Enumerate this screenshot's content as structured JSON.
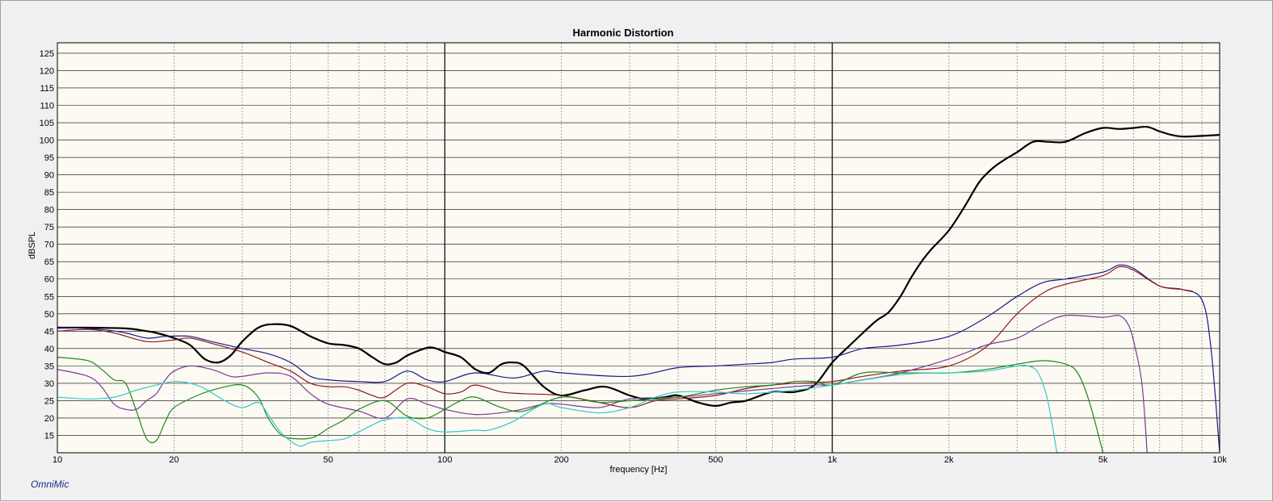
{
  "app": {
    "brand": "OmniMic"
  },
  "chart_data": {
    "type": "line",
    "title": "Harmonic Distortion",
    "xlabel": "frequency [Hz]",
    "ylabel": "dBSPL",
    "xscale": "log",
    "xlim": [
      10,
      10000
    ],
    "ylim": [
      10,
      128
    ],
    "grid": true,
    "x_tick_labels": [
      {
        "value": 10,
        "label": "10"
      },
      {
        "value": 20,
        "label": "20"
      },
      {
        "value": 50,
        "label": "50"
      },
      {
        "value": 100,
        "label": "100"
      },
      {
        "value": 200,
        "label": "200"
      },
      {
        "value": 500,
        "label": "500"
      },
      {
        "value": 1000,
        "label": "1k"
      },
      {
        "value": 2000,
        "label": "2k"
      },
      {
        "value": 5000,
        "label": "5k"
      },
      {
        "value": 10000,
        "label": "10k"
      }
    ],
    "y_ticks": [
      15,
      20,
      25,
      30,
      35,
      40,
      45,
      50,
      55,
      60,
      65,
      70,
      75,
      80,
      85,
      90,
      95,
      100,
      105,
      110,
      115,
      120,
      125
    ],
    "series": [
      {
        "color": "#000000",
        "width": 2.2,
        "points": [
          [
            10,
            46
          ],
          [
            12,
            46
          ],
          [
            15,
            45.8
          ],
          [
            17,
            45
          ],
          [
            18,
            44.5
          ],
          [
            20,
            43
          ],
          [
            22,
            41
          ],
          [
            24,
            37
          ],
          [
            26,
            36
          ],
          [
            28,
            38
          ],
          [
            30,
            42
          ],
          [
            33,
            46
          ],
          [
            36,
            47
          ],
          [
            40,
            46.5
          ],
          [
            45,
            43.5
          ],
          [
            50,
            41.5
          ],
          [
            55,
            41
          ],
          [
            60,
            40
          ],
          [
            65,
            37.5
          ],
          [
            70,
            35.5
          ],
          [
            75,
            36
          ],
          [
            80,
            38
          ],
          [
            90,
            40.2
          ],
          [
            95,
            40
          ],
          [
            100,
            39
          ],
          [
            110,
            37.5
          ],
          [
            120,
            34
          ],
          [
            130,
            33
          ],
          [
            140,
            35.5
          ],
          [
            150,
            36
          ],
          [
            160,
            35
          ],
          [
            180,
            29
          ],
          [
            200,
            26.5
          ],
          [
            230,
            28
          ],
          [
            260,
            29
          ],
          [
            300,
            26.5
          ],
          [
            330,
            25.5
          ],
          [
            370,
            26
          ],
          [
            400,
            26.5
          ],
          [
            450,
            24.5
          ],
          [
            500,
            23.5
          ],
          [
            550,
            24.5
          ],
          [
            600,
            25
          ],
          [
            700,
            27.5
          ],
          [
            800,
            27.5
          ],
          [
            900,
            29.5
          ],
          [
            1000,
            36
          ],
          [
            1100,
            40.5
          ],
          [
            1200,
            44.5
          ],
          [
            1300,
            48
          ],
          [
            1400,
            50.5
          ],
          [
            1500,
            55
          ],
          [
            1600,
            60.5
          ],
          [
            1700,
            65
          ],
          [
            1800,
            68.5
          ],
          [
            2000,
            74
          ],
          [
            2200,
            81
          ],
          [
            2400,
            88
          ],
          [
            2600,
            92
          ],
          [
            2800,
            94.5
          ],
          [
            3000,
            96.5
          ],
          [
            3300,
            99.5
          ],
          [
            3600,
            99.5
          ],
          [
            4000,
            99.5
          ],
          [
            4500,
            102
          ],
          [
            5000,
            103.5
          ],
          [
            5500,
            103.2
          ],
          [
            6000,
            103.5
          ],
          [
            6500,
            103.8
          ],
          [
            7000,
            102.5
          ],
          [
            7500,
            101.5
          ],
          [
            8000,
            101
          ],
          [
            9000,
            101.2
          ],
          [
            10000,
            101.5
          ]
        ]
      },
      {
        "color": "#1a1a8a",
        "width": 1.2,
        "points": [
          [
            10,
            46.2
          ],
          [
            13,
            45.5
          ],
          [
            15,
            44.5
          ],
          [
            17,
            43
          ],
          [
            19,
            43.5
          ],
          [
            22,
            43.5
          ],
          [
            25,
            42
          ],
          [
            30,
            40
          ],
          [
            35,
            38.5
          ],
          [
            40,
            36
          ],
          [
            45,
            32
          ],
          [
            50,
            31
          ],
          [
            60,
            30.5
          ],
          [
            70,
            30.5
          ],
          [
            80,
            33.5
          ],
          [
            90,
            31
          ],
          [
            100,
            30.5
          ],
          [
            120,
            33
          ],
          [
            150,
            31.5
          ],
          [
            180,
            33.5
          ],
          [
            200,
            33
          ],
          [
            300,
            32
          ],
          [
            400,
            34.5
          ],
          [
            500,
            35
          ],
          [
            600,
            35.5
          ],
          [
            700,
            36
          ],
          [
            800,
            37
          ],
          [
            1000,
            37.5
          ],
          [
            1200,
            40
          ],
          [
            1500,
            41
          ],
          [
            2000,
            43.5
          ],
          [
            2500,
            49
          ],
          [
            3000,
            55
          ],
          [
            3500,
            59
          ],
          [
            4000,
            60
          ],
          [
            5000,
            62
          ],
          [
            5500,
            64
          ],
          [
            6000,
            63
          ],
          [
            7000,
            58
          ],
          [
            8000,
            57
          ],
          [
            9000,
            54
          ],
          [
            9500,
            40
          ],
          [
            10000,
            10
          ]
        ]
      },
      {
        "color": "#8b1a1a",
        "width": 1.2,
        "points": [
          [
            10,
            45
          ],
          [
            12,
            45.5
          ],
          [
            14,
            44.5
          ],
          [
            17,
            42
          ],
          [
            20,
            42.5
          ],
          [
            22,
            43
          ],
          [
            25,
            41.5
          ],
          [
            30,
            39
          ],
          [
            35,
            36
          ],
          [
            40,
            33.5
          ],
          [
            45,
            30
          ],
          [
            50,
            29
          ],
          [
            55,
            29
          ],
          [
            60,
            28
          ],
          [
            65,
            26.5
          ],
          [
            70,
            26
          ],
          [
            80,
            30
          ],
          [
            90,
            29
          ],
          [
            100,
            27
          ],
          [
            110,
            27.5
          ],
          [
            120,
            29.5
          ],
          [
            140,
            27.5
          ],
          [
            160,
            27
          ],
          [
            200,
            26.5
          ],
          [
            250,
            24.5
          ],
          [
            300,
            23
          ],
          [
            350,
            25
          ],
          [
            400,
            25.5
          ],
          [
            500,
            26.5
          ],
          [
            600,
            28.5
          ],
          [
            700,
            29.5
          ],
          [
            800,
            30
          ],
          [
            1000,
            30.5
          ],
          [
            1200,
            32
          ],
          [
            1500,
            33.5
          ],
          [
            2000,
            35
          ],
          [
            2500,
            40.5
          ],
          [
            3000,
            50
          ],
          [
            3500,
            56
          ],
          [
            4000,
            58.5
          ],
          [
            5000,
            61
          ],
          [
            5500,
            63.5
          ],
          [
            6000,
            62.5
          ],
          [
            7000,
            58
          ],
          [
            8000,
            57
          ],
          [
            8500,
            56.5
          ]
        ]
      },
      {
        "color": "#7a3a9a",
        "width": 1.2,
        "points": [
          [
            10,
            34
          ],
          [
            12,
            32
          ],
          [
            13,
            29
          ],
          [
            14,
            24
          ],
          [
            15,
            22.5
          ],
          [
            16,
            22.5
          ],
          [
            17,
            25
          ],
          [
            18,
            27
          ],
          [
            19,
            31
          ],
          [
            20,
            33.5
          ],
          [
            22,
            35
          ],
          [
            25,
            34
          ],
          [
            28,
            32
          ],
          [
            30,
            32
          ],
          [
            35,
            33
          ],
          [
            40,
            32
          ],
          [
            45,
            27
          ],
          [
            50,
            24
          ],
          [
            60,
            22
          ],
          [
            70,
            20
          ],
          [
            80,
            25.5
          ],
          [
            90,
            24
          ],
          [
            100,
            22.5
          ],
          [
            120,
            21
          ],
          [
            150,
            22
          ],
          [
            180,
            24
          ],
          [
            200,
            24
          ],
          [
            250,
            23
          ],
          [
            300,
            25.5
          ],
          [
            400,
            26
          ],
          [
            500,
            27
          ],
          [
            700,
            28.5
          ],
          [
            900,
            29.5
          ],
          [
            1000,
            29.5
          ],
          [
            1200,
            31
          ],
          [
            1500,
            33
          ],
          [
            2000,
            37
          ],
          [
            2500,
            41
          ],
          [
            3000,
            43
          ],
          [
            3500,
            47
          ],
          [
            4000,
            49.5
          ],
          [
            5000,
            49
          ],
          [
            5500,
            49.5
          ],
          [
            5800,
            47
          ],
          [
            6000,
            42
          ],
          [
            6300,
            30
          ],
          [
            6500,
            10
          ]
        ]
      },
      {
        "color": "#1b8a1b",
        "width": 1.2,
        "points": [
          [
            10,
            37.5
          ],
          [
            12,
            36.5
          ],
          [
            13,
            34
          ],
          [
            14,
            31
          ],
          [
            15,
            30
          ],
          [
            16,
            22
          ],
          [
            17,
            14
          ],
          [
            18,
            13.5
          ],
          [
            19,
            19
          ],
          [
            20,
            23
          ],
          [
            23,
            26.5
          ],
          [
            26,
            28.5
          ],
          [
            30,
            29.5
          ],
          [
            33,
            26
          ],
          [
            35,
            20
          ],
          [
            38,
            15
          ],
          [
            42,
            14
          ],
          [
            46,
            14.5
          ],
          [
            50,
            17
          ],
          [
            55,
            19.5
          ],
          [
            60,
            22.5
          ],
          [
            70,
            25
          ],
          [
            80,
            20.5
          ],
          [
            90,
            20
          ],
          [
            100,
            22.5
          ],
          [
            110,
            25
          ],
          [
            120,
            26
          ],
          [
            140,
            23
          ],
          [
            160,
            22
          ],
          [
            200,
            26
          ],
          [
            250,
            24.5
          ],
          [
            300,
            25
          ],
          [
            400,
            26
          ],
          [
            500,
            28
          ],
          [
            600,
            29
          ],
          [
            700,
            29.5
          ],
          [
            800,
            30.5
          ],
          [
            900,
            30.5
          ],
          [
            1000,
            29.5
          ],
          [
            1200,
            33
          ],
          [
            1500,
            33
          ],
          [
            2000,
            33
          ],
          [
            2500,
            34
          ],
          [
            3000,
            35.5
          ],
          [
            3500,
            36.5
          ],
          [
            4000,
            35.5
          ],
          [
            4300,
            33
          ],
          [
            4600,
            25
          ],
          [
            5000,
            10
          ]
        ]
      },
      {
        "color": "#33c8c8",
        "width": 1.2,
        "points": [
          [
            10,
            26
          ],
          [
            12,
            25.5
          ],
          [
            14,
            26
          ],
          [
            16,
            28
          ],
          [
            18,
            29.5
          ],
          [
            20,
            30.5
          ],
          [
            22,
            30
          ],
          [
            24,
            28.5
          ],
          [
            27,
            25
          ],
          [
            30,
            23
          ],
          [
            33,
            24.5
          ],
          [
            35,
            21
          ],
          [
            38,
            15.5
          ],
          [
            42,
            12
          ],
          [
            45,
            13
          ],
          [
            50,
            13.5
          ],
          [
            55,
            14
          ],
          [
            60,
            16
          ],
          [
            65,
            18
          ],
          [
            70,
            19.5
          ],
          [
            80,
            20
          ],
          [
            90,
            17
          ],
          [
            100,
            16
          ],
          [
            120,
            16.5
          ],
          [
            130,
            16.5
          ],
          [
            150,
            19
          ],
          [
            180,
            24
          ],
          [
            200,
            23
          ],
          [
            250,
            21.5
          ],
          [
            300,
            23
          ],
          [
            350,
            26
          ],
          [
            400,
            27.5
          ],
          [
            500,
            27.5
          ],
          [
            600,
            27
          ],
          [
            800,
            28
          ],
          [
            1000,
            29.5
          ],
          [
            1500,
            32.5
          ],
          [
            2000,
            33
          ],
          [
            2500,
            33.5
          ],
          [
            3000,
            35
          ],
          [
            3200,
            35
          ],
          [
            3400,
            33
          ],
          [
            3600,
            25
          ],
          [
            3800,
            10
          ]
        ]
      }
    ]
  }
}
